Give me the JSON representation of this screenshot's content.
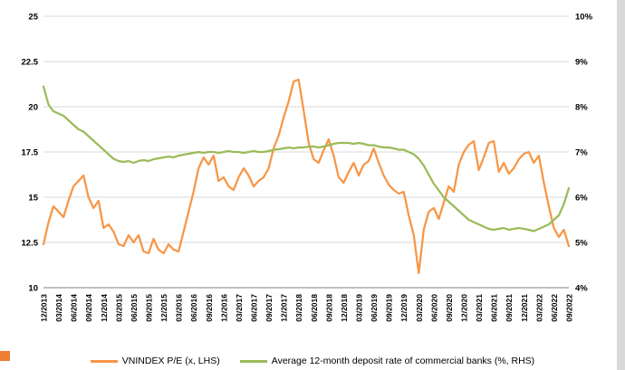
{
  "chart_data": {
    "type": "line",
    "title": "",
    "grid": true,
    "legend_position": "bottom",
    "left_axis": {
      "min": 10,
      "max": 25,
      "ticks": [
        {
          "v": 25,
          "label": "25"
        },
        {
          "v": 22.5,
          "label": "22.5"
        },
        {
          "v": 20,
          "label": "20"
        },
        {
          "v": 17.5,
          "label": "17.5"
        },
        {
          "v": 15,
          "label": "15"
        },
        {
          "v": 12.5,
          "label": "12.5"
        },
        {
          "v": 10,
          "label": "10"
        }
      ]
    },
    "right_axis": {
      "min": 4,
      "max": 10,
      "ticks": [
        {
          "v": 10,
          "label": "10%"
        },
        {
          "v": 9,
          "label": "9%"
        },
        {
          "v": 8,
          "label": "8%"
        },
        {
          "v": 7,
          "label": "7%"
        },
        {
          "v": 6,
          "label": "6%"
        },
        {
          "v": 5,
          "label": "5%"
        },
        {
          "v": 4,
          "label": "4%"
        }
      ]
    },
    "x_tick_labels": [
      "12/2013",
      "03/2014",
      "06/2014",
      "09/2014",
      "12/2014",
      "03/2015",
      "06/2015",
      "09/2015",
      "12/2015",
      "03/2016",
      "06/2016",
      "09/2016",
      "12/2016",
      "03/2017",
      "06/2017",
      "09/2017",
      "12/2017",
      "03/2018",
      "06/2018",
      "09/2018",
      "12/2018",
      "03/2019",
      "06/2019",
      "09/2019",
      "12/2019",
      "03/2020",
      "06/2020",
      "09/2020",
      "12/2020",
      "03/2021",
      "06/2021",
      "09/2021",
      "12/2021",
      "03/2022",
      "06/2022",
      "09/2022"
    ],
    "x_tick_every": 3,
    "series": [
      {
        "name": "VNINDEX P/E (x, LHS)",
        "axis": "left",
        "color": "#F79646",
        "values": [
          12.4,
          13.6,
          14.5,
          14.2,
          13.9,
          14.8,
          15.6,
          15.9,
          16.2,
          15.0,
          14.4,
          14.8,
          13.3,
          13.5,
          13.1,
          12.4,
          12.3,
          12.9,
          12.5,
          12.9,
          12.0,
          11.9,
          12.7,
          12.1,
          11.9,
          12.4,
          12.1,
          12.0,
          13.1,
          14.2,
          15.3,
          16.6,
          17.2,
          16.8,
          17.3,
          15.9,
          16.1,
          15.6,
          15.4,
          16.1,
          16.6,
          16.2,
          15.6,
          15.9,
          16.1,
          16.6,
          17.7,
          18.4,
          19.4,
          20.3,
          21.4,
          21.5,
          19.8,
          18.0,
          17.1,
          16.9,
          17.6,
          18.2,
          17.3,
          16.1,
          15.8,
          16.4,
          16.9,
          16.2,
          16.8,
          17.0,
          17.7,
          16.9,
          16.2,
          15.7,
          15.4,
          15.2,
          15.3,
          14.0,
          12.9,
          10.8,
          13.2,
          14.2,
          14.4,
          13.8,
          14.7,
          15.6,
          15.3,
          16.8,
          17.5,
          17.9,
          18.1,
          16.5,
          17.2,
          18.0,
          18.1,
          16.4,
          16.9,
          16.3,
          16.6,
          17.1,
          17.4,
          17.5,
          16.9,
          17.3,
          15.8,
          14.5,
          13.3,
          12.8,
          13.2,
          12.3
        ]
      },
      {
        "name": "Average 12-month deposit rate of commercial banks (%, RHS)",
        "axis": "right",
        "color": "#9BBB59",
        "values": [
          8.45,
          8.05,
          7.9,
          7.85,
          7.8,
          7.7,
          7.6,
          7.5,
          7.45,
          7.35,
          7.25,
          7.15,
          7.05,
          6.95,
          6.85,
          6.8,
          6.78,
          6.8,
          6.76,
          6.8,
          6.82,
          6.8,
          6.84,
          6.86,
          6.88,
          6.9,
          6.88,
          6.92,
          6.94,
          6.96,
          6.98,
          7.0,
          6.98,
          7.0,
          7.0,
          6.98,
          7.0,
          7.02,
          7.0,
          7.0,
          6.98,
          7.0,
          7.02,
          7.0,
          7.0,
          7.02,
          7.05,
          7.06,
          7.08,
          7.1,
          7.08,
          7.1,
          7.1,
          7.12,
          7.12,
          7.1,
          7.12,
          7.15,
          7.18,
          7.2,
          7.2,
          7.2,
          7.18,
          7.2,
          7.18,
          7.15,
          7.15,
          7.12,
          7.1,
          7.1,
          7.08,
          7.05,
          7.05,
          7.0,
          6.95,
          6.85,
          6.7,
          6.5,
          6.3,
          6.15,
          6.0,
          5.9,
          5.8,
          5.7,
          5.6,
          5.5,
          5.45,
          5.4,
          5.35,
          5.3,
          5.28,
          5.3,
          5.32,
          5.28,
          5.3,
          5.32,
          5.3,
          5.28,
          5.25,
          5.3,
          5.35,
          5.4,
          5.5,
          5.6,
          5.85,
          6.2
        ]
      }
    ]
  },
  "decor": {
    "slide_background_color": "#D9D9D9",
    "accent_square_color": "#ED7D31",
    "gridline_color": "#D9D9D9",
    "axis_line_color": "#808080"
  }
}
